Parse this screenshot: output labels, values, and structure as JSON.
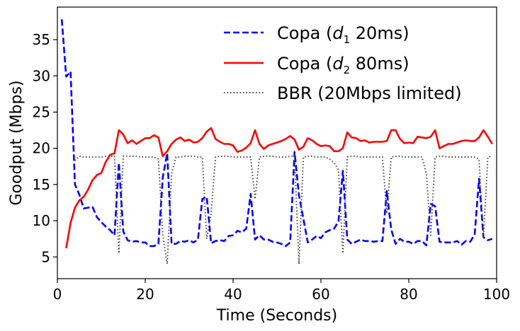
{
  "chart_data": {
    "type": "line",
    "title": "",
    "xlabel": "Time (Seconds)",
    "ylabel": "Goodput (Mbps)",
    "xlim": [
      0,
      100
    ],
    "ylim": [
      2,
      39.5
    ],
    "xticks": [
      "0",
      "20",
      "40",
      "60",
      "80",
      "100"
    ],
    "yticks": [
      "5",
      "10",
      "15",
      "20",
      "25",
      "30",
      "35"
    ],
    "grid": false,
    "legend_position": "top-right",
    "series": [
      {
        "name": "Copa (d1 20ms)",
        "legend": {
          "prefix": "Copa (",
          "var": "d",
          "sub": "1",
          "suffix": " 20ms)"
        },
        "color": "#0000ff",
        "style": "dashed",
        "x": [
          1,
          2,
          3,
          4,
          5,
          6,
          7,
          8,
          9,
          10,
          11,
          12,
          13,
          14,
          15,
          16,
          17,
          18,
          19,
          20,
          21,
          22,
          23,
          24,
          25,
          26,
          27,
          28,
          29,
          30,
          31,
          32,
          33,
          34,
          35,
          36,
          37,
          38,
          39,
          40,
          41,
          42,
          43,
          44,
          45,
          46,
          47,
          48,
          49,
          50,
          51,
          52,
          53,
          54,
          55,
          56,
          57,
          58,
          59,
          60,
          61,
          62,
          63,
          64,
          65,
          66,
          67,
          68,
          69,
          70,
          71,
          72,
          73,
          74,
          75,
          76,
          77,
          78,
          79,
          80,
          81,
          82,
          83,
          84,
          85,
          86,
          87,
          88,
          89,
          90,
          91,
          92,
          93,
          94,
          95,
          96,
          97,
          98,
          99
        ],
        "y": [
          37.8,
          29.9,
          30.6,
          15.0,
          13.6,
          11.7,
          11.8,
          11.9,
          10.5,
          9.8,
          9.2,
          8.7,
          8.0,
          18.0,
          8.5,
          7.3,
          7.1,
          7.2,
          7.0,
          7.0,
          6.5,
          6.5,
          6.8,
          16.0,
          19.3,
          6.8,
          6.8,
          7.2,
          7.1,
          7.3,
          7.0,
          7.4,
          13.0,
          13.3,
          6.9,
          7.2,
          7.3,
          7.2,
          7.9,
          8.0,
          8.6,
          8.4,
          8.9,
          13.7,
          7.4,
          8.0,
          7.4,
          7.4,
          7.1,
          7.0,
          6.8,
          6.5,
          7.0,
          19.5,
          13.5,
          10.3,
          7.0,
          7.4,
          7.9,
          7.6,
          8.4,
          8.7,
          8.9,
          9.9,
          16.9,
          7.4,
          6.8,
          7.1,
          7.4,
          7.2,
          7.2,
          7.1,
          7.2,
          7.2,
          14.1,
          8.8,
          6.8,
          7.5,
          7.1,
          7.1,
          6.8,
          7.2,
          7.2,
          6.6,
          12.3,
          12.0,
          7.1,
          7.0,
          7.0,
          7.0,
          7.2,
          6.7,
          7.2,
          7.1,
          8.1,
          15.8,
          7.7,
          7.3,
          7.5
        ]
      },
      {
        "name": "Copa (d2 80ms)",
        "legend": {
          "prefix": "Copa (",
          "var": "d",
          "sub": "2",
          "suffix": " 80ms)"
        },
        "color": "#ff0000",
        "style": "solid",
        "x": [
          2,
          3,
          4,
          5,
          6,
          7,
          8,
          9,
          10,
          11,
          12,
          13,
          14,
          15,
          16,
          17,
          18,
          19,
          20,
          21,
          22,
          23,
          24,
          25,
          26,
          27,
          28,
          29,
          30,
          31,
          32,
          33,
          34,
          35,
          36,
          37,
          38,
          39,
          40,
          41,
          42,
          43,
          44,
          45,
          46,
          47,
          48,
          49,
          50,
          51,
          52,
          53,
          54,
          55,
          56,
          57,
          58,
          59,
          60,
          61,
          62,
          63,
          64,
          65,
          66,
          67,
          68,
          69,
          70,
          71,
          72,
          73,
          74,
          75,
          76,
          77,
          78,
          79,
          80,
          81,
          82,
          83,
          84,
          85,
          86,
          87,
          88,
          89,
          90,
          91,
          92,
          93,
          94,
          95,
          96,
          97,
          98,
          99
        ],
        "y": [
          6.2,
          9.7,
          11.8,
          12.8,
          13.3,
          14.3,
          15.6,
          16.3,
          16.6,
          18.1,
          19.1,
          19.3,
          22.5,
          21.9,
          20.7,
          21.1,
          20.6,
          21.0,
          21.4,
          21.4,
          21.8,
          21.5,
          18.9,
          19.6,
          20.6,
          21.2,
          21.5,
          21.0,
          21.2,
          20.8,
          20.9,
          21.4,
          22.3,
          22.8,
          21.3,
          20.9,
          20.6,
          20.6,
          20.4,
          19.5,
          19.7,
          20.1,
          20.7,
          22.5,
          20.6,
          19.9,
          20.4,
          20.6,
          20.8,
          21.0,
          21.3,
          21.7,
          21.2,
          19.8,
          20.2,
          21.4,
          21.1,
          20.6,
          20.3,
          20.4,
          20.3,
          19.6,
          19.6,
          20.0,
          22.2,
          21.5,
          21.4,
          21.0,
          21.1,
          20.8,
          20.9,
          20.9,
          20.9,
          21.0,
          22.5,
          22.5,
          21.3,
          20.7,
          20.8,
          20.7,
          21.6,
          21.5,
          21.4,
          21.6,
          22.5,
          20.0,
          20.3,
          20.6,
          20.6,
          20.8,
          21.0,
          21.1,
          21.0,
          21.0,
          21.5,
          22.5,
          21.6,
          20.6
        ]
      },
      {
        "name": "BBR (20Mbps limited)",
        "legend": {
          "prefix": "BBR (20Mbps limited)",
          "var": "",
          "sub": "",
          "suffix": ""
        },
        "color": "#444444",
        "style": "dotted",
        "x": [
          4,
          5,
          6,
          7,
          8,
          9,
          10,
          11,
          12,
          13,
          14,
          15,
          16,
          17,
          18,
          19,
          20,
          21,
          22,
          23,
          24,
          25,
          26,
          27,
          28,
          29,
          30,
          31,
          32,
          33,
          34,
          35,
          36,
          37,
          38,
          39,
          40,
          41,
          42,
          43,
          44,
          45,
          46,
          47,
          48,
          49,
          50,
          51,
          52,
          53,
          54,
          55,
          56,
          57,
          58,
          59,
          60,
          61,
          62,
          63,
          64,
          65,
          66,
          67,
          68,
          69,
          70,
          71,
          72,
          73,
          74,
          75,
          76,
          77,
          78,
          79,
          80,
          81,
          82,
          83,
          84,
          85,
          86,
          87,
          88,
          89,
          90,
          91,
          92,
          93,
          94,
          95,
          96,
          97,
          98,
          99
        ],
        "y": [
          18.3,
          18.9,
          18.8,
          18.8,
          18.8,
          18.8,
          18.8,
          18.9,
          18.9,
          18.9,
          5.5,
          18.9,
          18.9,
          18.9,
          18.9,
          18.8,
          18.8,
          18.8,
          18.8,
          18.5,
          8.0,
          4.0,
          16.5,
          18.8,
          18.8,
          18.9,
          18.9,
          18.9,
          18.8,
          18.8,
          7.5,
          11.0,
          18.8,
          18.9,
          18.9,
          18.9,
          18.8,
          18.8,
          18.8,
          18.8,
          18.8,
          13.0,
          18.8,
          18.9,
          18.9,
          18.9,
          18.8,
          18.8,
          18.8,
          18.9,
          18.9,
          4.0,
          18.8,
          18.9,
          18.9,
          18.8,
          18.8,
          18.8,
          18.5,
          18.0,
          17.0,
          5.5,
          18.8,
          18.9,
          18.9,
          18.8,
          18.8,
          18.8,
          18.8,
          18.8,
          18.8,
          11.0,
          18.8,
          18.9,
          18.9,
          18.8,
          18.8,
          18.8,
          18.8,
          18.8,
          16.5,
          8.0,
          18.8,
          18.9,
          18.9,
          18.8,
          18.8,
          18.8,
          18.8,
          18.8,
          18.8,
          18.8,
          18.5,
          7.5,
          18.8,
          18.9
        ]
      }
    ]
  }
}
